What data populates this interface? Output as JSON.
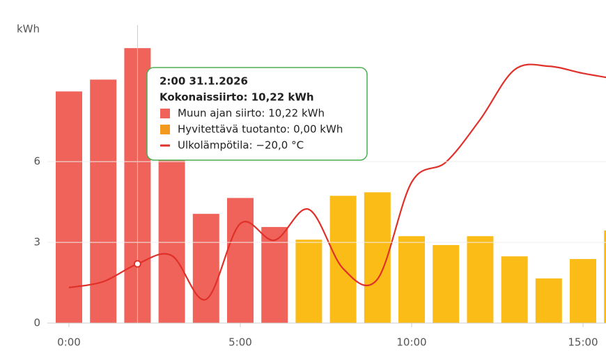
{
  "chart_data": {
    "type": "bar",
    "y_label": "kWh",
    "categories": [
      "0:00",
      null,
      null,
      null,
      null,
      "5:00",
      null,
      null,
      null,
      null,
      "10:00",
      null,
      null,
      null,
      null,
      "15:00",
      null
    ],
    "series": [
      {
        "name": "Muun ajan siirto",
        "color": "#f0635a",
        "values": [
          8.61,
          9.05,
          10.22,
          7.5,
          4.06,
          4.65,
          3.57,
          0,
          0,
          0,
          0,
          0,
          0,
          0,
          0,
          0,
          0
        ]
      },
      {
        "name": "Hyvitettävä tuotanto",
        "color": "#fbbc18",
        "legend_color": "#f39a1e",
        "values": [
          0,
          0,
          0,
          0,
          0,
          0,
          0,
          3.1,
          4.73,
          4.86,
          3.23,
          2.9,
          3.23,
          2.48,
          1.66,
          2.38,
          3.44
        ]
      },
      {
        "name": "Ulkolämpötila",
        "type": "line",
        "axis": "y2",
        "color": "#e0302a",
        "values": [
          -22.0,
          -21.5,
          -20.0,
          -19.3,
          -23.0,
          -16.6,
          -18.0,
          -15.4,
          -20.4,
          -21.3,
          -13.1,
          -11.4,
          -7.8,
          -3.6,
          -3.3,
          -3.9,
          -4.4
        ]
      }
    ],
    "ylim": [
      0,
      11
    ],
    "yticks": [
      0,
      3,
      6
    ],
    "y2lim": [
      -25,
      0
    ],
    "grid": true,
    "tooltip": {
      "index": 2,
      "title": "2:00 31.1.2026",
      "total": "Kokonaissiirto: 10,22 kWh",
      "items": [
        "Muun ajan siirto: 10,22 kWh",
        "Hyvitettävä tuotanto: 0,00 kWh",
        "Ulkolämpötila: −20,0 °C"
      ]
    }
  }
}
